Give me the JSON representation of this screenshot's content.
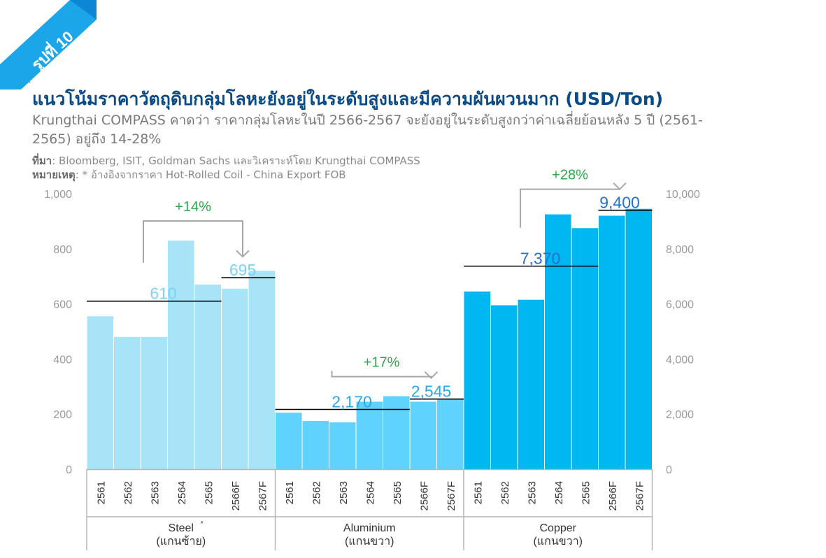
{
  "figure_label": "รูปที่ 10",
  "title": "แนวโน้มราคาวัตถุดิบกลุ่มโลหะยังอยู่ในระดับสูงและมีความผันผวนมาก (USD/Ton)",
  "subtitle": "Krungthai COMPASS คาดว่า ราคากลุ่มโลหะในปี 2566-2567 จะยังอยู่ในระดับสูงกว่าค่าเฉลี่ยย้อนหลัง 5 ปี (2561-2565) อยู่ถึง 14-28%",
  "source_label": "ที่มา",
  "source_text": ": Bloomberg, ISIT, Goldman Sachs และวิเคราะห์โดย Krungthai COMPASS",
  "remark_label": "หมายเหตุ",
  "remark_text": ": * อ้างอิงจากราคา Hot-Rolled Coil - China Export FOB",
  "colors": {
    "steel": "#a8e4f8",
    "aluminium": "#5fd3fb",
    "copper": "#00b7f1",
    "steel_label": "#7dd3f0",
    "al_label": "#2da7e2",
    "cu_label": "#2a6fc9",
    "pct": "#2ea84a",
    "bracket": "#a8a8a8",
    "title": "#0a4b86"
  },
  "chart_data": {
    "type": "bar",
    "left_axis": {
      "min": 0,
      "max": 1000,
      "ticks": [
        "0",
        "200",
        "400",
        "600",
        "800",
        "1,000"
      ]
    },
    "right_axis": {
      "min": 0,
      "max": 10000,
      "ticks": [
        "0",
        "2,000",
        "4,000",
        "6,000",
        "8,000",
        "10,000"
      ]
    },
    "categories": [
      "2561",
      "2562",
      "2563",
      "2564",
      "2565",
      "2566F",
      "2567F"
    ],
    "groups": [
      {
        "name": "Steel",
        "superscript": "*",
        "axis_note": "(แกนซ้าย)",
        "axis": "left",
        "values": [
          555,
          480,
          480,
          830,
          670,
          655,
          720
        ],
        "avg": 610,
        "avg_label": "610",
        "forecast": 695,
        "forecast_label": "695",
        "change": "+14%"
      },
      {
        "name": "Aluminium",
        "axis_note": "(แกนขวา)",
        "axis": "right",
        "values": [
          2050,
          1750,
          1700,
          2450,
          2650,
          2450,
          2550
        ],
        "avg": 2170,
        "avg_label": "2,170",
        "forecast": 2545,
        "forecast_label": "2,545",
        "change": "+17%"
      },
      {
        "name": "Copper",
        "axis_note": "(แกนขวา)",
        "axis": "right",
        "values": [
          6450,
          5950,
          6150,
          9250,
          8750,
          9200,
          9450
        ],
        "avg": 7370,
        "avg_label": "7,370",
        "forecast": 9400,
        "forecast_label": "9,400",
        "change": "+28%"
      }
    ]
  }
}
